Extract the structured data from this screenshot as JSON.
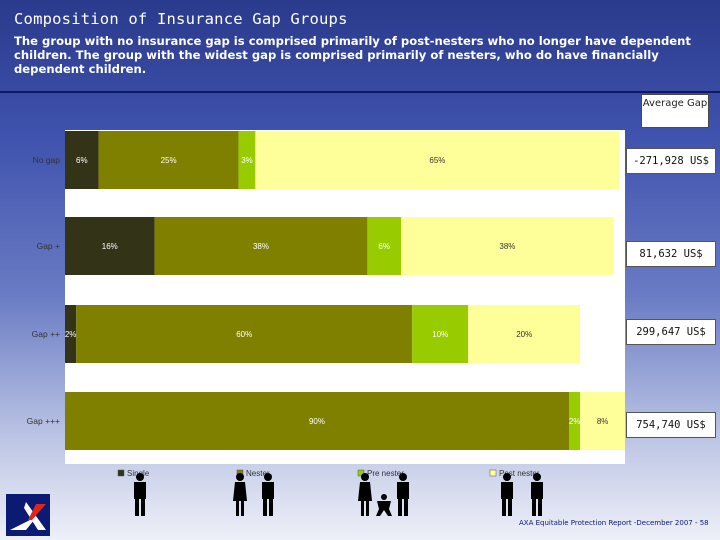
{
  "slide": {
    "title": "Composition of Insurance Gap Groups",
    "subtitle": "The group with no insurance gap is comprised primarily of post-nesters who no longer have dependent children. The group with the widest gap is comprised primarily of nesters, who do have financially dependent children."
  },
  "average_gap": {
    "header": "Average Gap",
    "values": [
      "-271,928 US$",
      "81,632 US$",
      "299,647 US$",
      "754,740 US$"
    ]
  },
  "footer": {
    "note": "AXA Equitable Protection Report -December 2007 - 58"
  },
  "colors": {
    "single": "#333318",
    "nester": "#808000",
    "pre_nester": "#99cc00",
    "post_nester": "#ffff99"
  },
  "chart_data": {
    "type": "bar",
    "orientation": "horizontal",
    "stacked": true,
    "categories": [
      "No gap",
      "Gap +",
      "Gap ++",
      "Gap +++"
    ],
    "series": [
      {
        "name": "Single",
        "values": [
          6,
          16,
          2,
          0
        ]
      },
      {
        "name": "Nester",
        "values": [
          25,
          38,
          60,
          90
        ]
      },
      {
        "name": "Pre nester",
        "values": [
          3,
          6,
          10,
          2
        ]
      },
      {
        "name": "Post nester",
        "values": [
          65,
          38,
          20,
          8
        ]
      }
    ],
    "value_labels": [
      [
        "6%",
        "25%",
        "3%",
        "65%"
      ],
      [
        "16%",
        "38%",
        "6%",
        "38%"
      ],
      [
        "2%",
        "60%",
        "10%",
        "20%"
      ],
      [
        "",
        "90%",
        "2%",
        "8%"
      ]
    ],
    "xlim": [
      0,
      100
    ],
    "legend": "bottom",
    "title": "",
    "xlabel": "",
    "ylabel": ""
  }
}
